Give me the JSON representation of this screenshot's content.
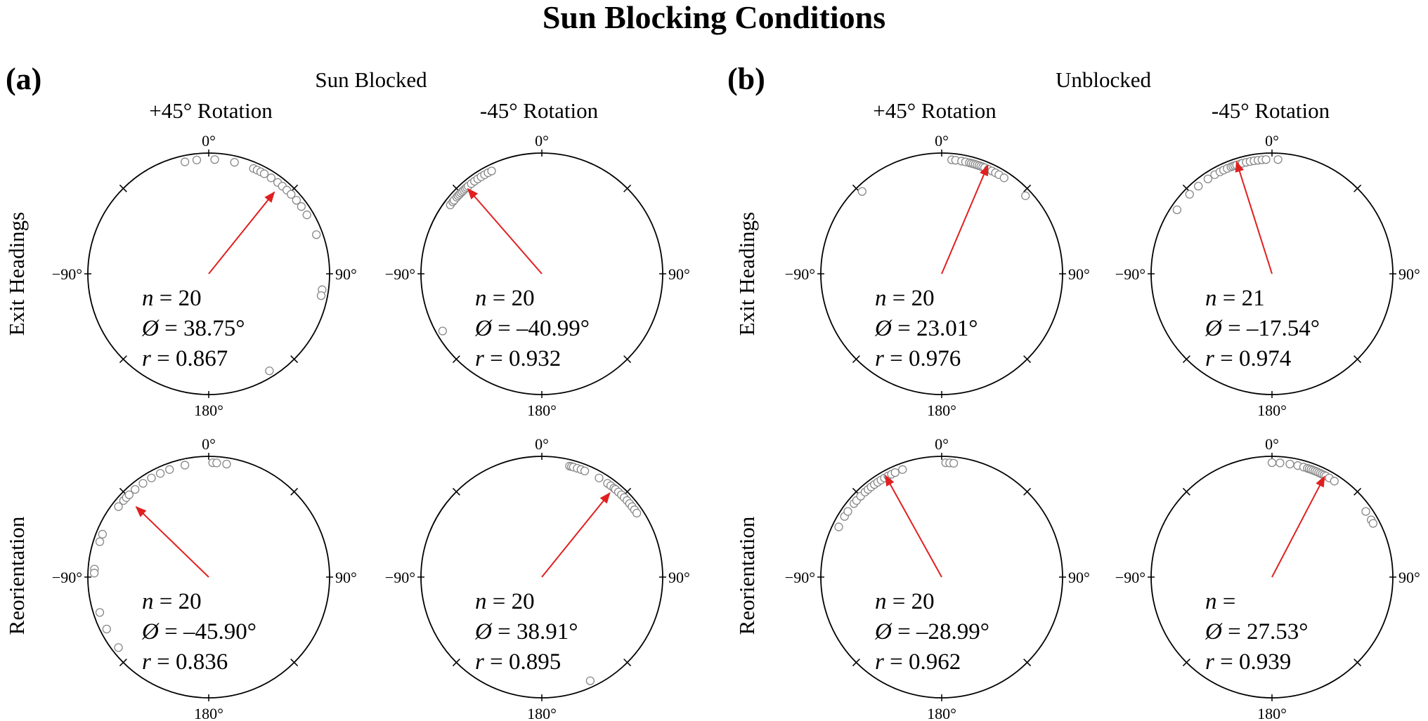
{
  "title": "Sun Blocking Conditions",
  "panels": [
    {
      "label": "(a)",
      "group": "Sun Blocked"
    },
    {
      "label": "(b)",
      "group": "Unblocked"
    }
  ],
  "column_labels": [
    "+45° Rotation",
    "-45° Rotation",
    "+45° Rotation",
    "-45° Rotation"
  ],
  "row_labels": [
    "Exit Headings",
    "Reorientation"
  ],
  "angle_labels": {
    "top": "0°",
    "right": "90°",
    "bottom": "180°",
    "left": "−90°"
  },
  "stat_labels": {
    "n": "n",
    "phi": "Ø",
    "r": "r"
  },
  "colors": {
    "mean_vector": "#e02020",
    "points": "#888888",
    "circle": "#000000"
  },
  "chart_data": [
    {
      "type": "circular-scatter",
      "panel": "(a)",
      "condition": "Sun Blocked",
      "rotation": "+45° Rotation",
      "measure": "Exit Headings",
      "n": "20",
      "phi": "38.75°",
      "r": "0.867",
      "mean_angle": 38.75,
      "mean_r": 0.867,
      "headings": [
        -12,
        -6,
        3,
        13,
        23,
        25,
        27,
        29,
        33,
        37,
        40,
        43,
        46,
        50,
        54,
        59,
        70,
        98,
        101,
        148
      ]
    },
    {
      "type": "circular-scatter",
      "panel": "(a)",
      "condition": "Sun Blocked",
      "rotation": "-45° Rotation",
      "measure": "Exit Headings",
      "n": "20",
      "phi": "–40.99°",
      "r": "0.932",
      "mean_angle": -40.99,
      "mean_r": 0.932,
      "headings": [
        -53,
        -51,
        -50,
        -48,
        -47,
        -46,
        -45,
        -44,
        -43,
        -42,
        -41,
        -40,
        -38,
        -36,
        -34,
        -32,
        -30,
        -28,
        -26,
        -120
      ]
    },
    {
      "type": "circular-scatter",
      "panel": "(b)",
      "condition": "Unblocked",
      "rotation": "+45° Rotation",
      "measure": "Exit Headings",
      "n": "20",
      "phi": "23.01°",
      "r": "0.976",
      "mean_angle": 23.01,
      "mean_r": 0.976,
      "headings": [
        -44,
        5,
        7,
        10,
        12,
        14,
        15,
        16,
        17,
        18,
        19,
        20,
        21,
        22,
        24,
        26,
        28,
        30,
        33,
        47
      ]
    },
    {
      "type": "circular-scatter",
      "panel": "(b)",
      "condition": "Unblocked",
      "rotation": "-45° Rotation",
      "measure": "Exit Headings",
      "n": "21",
      "phi": "–17.54°",
      "r": "0.974",
      "mean_angle": -17.54,
      "mean_r": 0.974,
      "headings": [
        -56,
        -46,
        -40,
        -34,
        -30,
        -27,
        -25,
        -23,
        -21,
        -20,
        -19,
        -18,
        -16,
        -15,
        -13,
        -11,
        -9,
        -7,
        -5,
        -3,
        3
      ]
    },
    {
      "type": "circular-scatter",
      "panel": "(a)",
      "condition": "Sun Blocked",
      "rotation": "+45° Rotation",
      "measure": "Reorientation",
      "n": "20",
      "phi": "–45.90°",
      "r": "0.836",
      "mean_angle": -45.9,
      "mean_r": 0.836,
      "headings": [
        -108,
        -117,
        -128,
        -86,
        -88,
        -72,
        -68,
        -52,
        -48,
        -46,
        -44,
        -40,
        -35,
        -30,
        -25,
        -20,
        -12,
        2,
        4,
        9
      ]
    },
    {
      "type": "circular-scatter",
      "panel": "(a)",
      "condition": "Sun Blocked",
      "rotation": "-45° Rotation",
      "measure": "Reorientation",
      "n": "20",
      "phi": "38.91°",
      "r": "0.895",
      "mean_angle": 38.91,
      "mean_r": 0.895,
      "headings": [
        14,
        15,
        16,
        18,
        20,
        22,
        30,
        35,
        37,
        39,
        40,
        42,
        44,
        46,
        48,
        50,
        52,
        54,
        56,
        155
      ]
    },
    {
      "type": "circular-scatter",
      "panel": "(b)",
      "condition": "Unblocked",
      "rotation": "+45° Rotation",
      "measure": "Reorientation",
      "n": "20",
      "phi": "–28.99°",
      "r": "0.962",
      "mean_angle": -28.99,
      "mean_r": 0.962,
      "headings": [
        -64,
        -58,
        -55,
        -50,
        -48,
        -45,
        -42,
        -40,
        -38,
        -36,
        -34,
        -32,
        -30,
        -28,
        -26,
        -24,
        -20,
        2,
        4,
        6
      ]
    },
    {
      "type": "circular-scatter",
      "panel": "(b)",
      "condition": "Unblocked",
      "rotation": "-45° Rotation",
      "measure": "Reorientation",
      "n": "",
      "phi": "27.53°",
      "r": "0.939",
      "mean_angle": 27.53,
      "mean_r": 0.939,
      "headings": [
        0,
        4,
        9,
        13,
        16,
        18,
        19,
        20,
        21,
        22,
        23,
        24,
        25,
        26,
        27,
        28,
        30,
        33,
        55,
        60,
        62
      ]
    }
  ]
}
